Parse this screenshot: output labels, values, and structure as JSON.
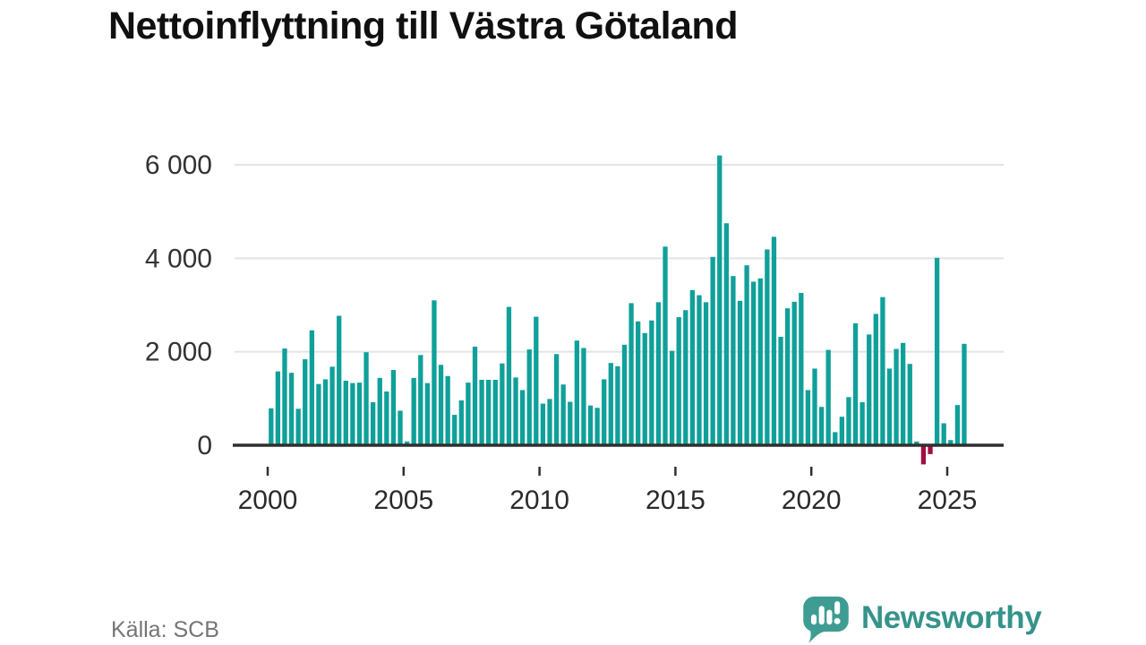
{
  "header": {
    "title": "Nettoinflyttning till Västra Götaland"
  },
  "footer": {
    "source": "Källa: SCB",
    "brand": "Newsworthy",
    "logo_icon": "speech-bubble-with-bar-chart-and-exclamation"
  },
  "colors": {
    "bar_positive": "#0fa09a",
    "bar_negative": "#a30d42",
    "grid": "#e4e4e4",
    "axis": "#2f2f2f",
    "y_tick_text": "#333333",
    "x_tick_text": "#2a2a2a",
    "title_text": "#101010",
    "source_text": "#757575",
    "logo_bubble": "#3f9c92",
    "logo_text": "#35938b"
  },
  "chart_data": {
    "type": "bar",
    "title": "Nettoinflyttning till Västra Götaland",
    "xlabel": "",
    "ylabel": "",
    "frequency": "quarterly",
    "x_start_year": 2000,
    "x_start_quarter": 1,
    "x_end_year": 2025,
    "x_end_quarter": 3,
    "ylim": [
      -500,
      6400
    ],
    "grid": "horizontal",
    "legend_position": "none",
    "x_ticks": [
      2000,
      2005,
      2010,
      2015,
      2020,
      2025
    ],
    "y_ticks": [
      {
        "value": 0,
        "label": "0"
      },
      {
        "value": 2000,
        "label": "2 000"
      },
      {
        "value": 4000,
        "label": "4 000"
      },
      {
        "value": 6000,
        "label": "6 000"
      }
    ],
    "series": [
      {
        "name": "Nettoinflyttning",
        "values": [
          790,
          1580,
          2070,
          1550,
          780,
          1840,
          2460,
          1310,
          1410,
          1680,
          2770,
          1380,
          1330,
          1340,
          1990,
          920,
          1440,
          1150,
          1610,
          740,
          80,
          1440,
          1930,
          1330,
          3100,
          1720,
          1480,
          650,
          960,
          1340,
          2110,
          1400,
          1400,
          1400,
          1750,
          2960,
          1450,
          1180,
          2050,
          2750,
          890,
          990,
          1950,
          1300,
          930,
          2240,
          2080,
          850,
          800,
          1410,
          1760,
          1690,
          2150,
          3040,
          2650,
          2400,
          2670,
          3060,
          4250,
          2020,
          2740,
          2890,
          3320,
          3210,
          3060,
          4030,
          6200,
          4750,
          3620,
          3090,
          3850,
          3500,
          3570,
          4190,
          4460,
          2320,
          2930,
          3070,
          3260,
          1180,
          1640,
          820,
          2040,
          280,
          610,
          1030,
          2610,
          920,
          2370,
          2810,
          3170,
          1640,
          2060,
          2190,
          1740,
          80,
          -410,
          -190,
          4010,
          470,
          110,
          860,
          2170
        ]
      }
    ]
  }
}
